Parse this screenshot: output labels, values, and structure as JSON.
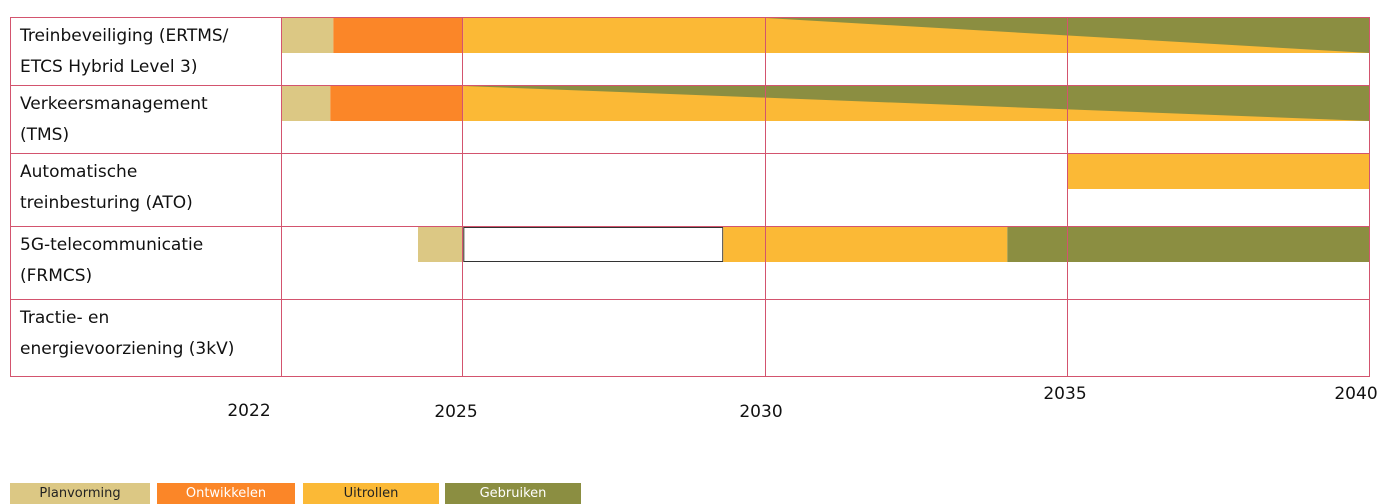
{
  "chart_data": {
    "type": "gantt",
    "x_range": [
      2022,
      2040
    ],
    "x_ticks": [
      "2022",
      "2025",
      "2030",
      "2035",
      "2040"
    ],
    "rows": [
      {
        "label": "Treinbeveiliging (ERTMS/\nETCS Hybrid Level 3)"
      },
      {
        "label": "Verkeersmanagement\n(TMS)"
      },
      {
        "label": "Automatische\ntreinbesturing (ATO)"
      },
      {
        "label": "5G-telecommunicatie\n(FRMCS)"
      },
      {
        "label": "Tractie- en\nenergievoorziening (3kV)"
      }
    ],
    "bars": [
      {
        "row": 0,
        "phase": "Planvorming",
        "start": 2022.0,
        "end": 2022.85
      },
      {
        "row": 0,
        "phase": "Ontwikkelen",
        "start": 2022.85,
        "end": 2025.0
      },
      {
        "row": 0,
        "phase": "Uitrollen",
        "start": 2025.0,
        "end": 2040.0
      },
      {
        "row": 1,
        "phase": "Planvorming",
        "start": 2022.0,
        "end": 2022.8
      },
      {
        "row": 1,
        "phase": "Ontwikkelen",
        "start": 2022.8,
        "end": 2025.0
      },
      {
        "row": 1,
        "phase": "Uitrollen",
        "start": 2025.0,
        "end": 2040.0
      },
      {
        "row": 2,
        "phase": "Uitrollen",
        "start": 2035.0,
        "end": 2040.0
      },
      {
        "row": 3,
        "phase": "Planvorming",
        "start": 2024.25,
        "end": 2025.0
      },
      {
        "row": 3,
        "phase": "none",
        "start": 2025.0,
        "end": 2029.3
      },
      {
        "row": 3,
        "phase": "Uitrollen",
        "start": 2029.3,
        "end": 2034.0
      },
      {
        "row": 3,
        "phase": "Gebruiken",
        "start": 2034.0,
        "end": 2040.0
      }
    ],
    "transitions": [
      {
        "row": 0,
        "from": "Uitrollen",
        "to": "Gebruiken",
        "start": 2030.0,
        "end_top": 2036.0,
        "end_bottom": 2040.0
      },
      {
        "row": 1,
        "from": "Uitrollen",
        "to": "Gebruiken",
        "start": 2025.0,
        "end_top": 2040.0,
        "end_bottom": 2040.0
      }
    ],
    "legend": [
      {
        "label": "Planvorming",
        "color": "#dcc884",
        "text_color": "#222222"
      },
      {
        "label": "Ontwikkelen",
        "color": "#fb8628",
        "text_color": "#ffffff"
      },
      {
        "label": "Uitrollen",
        "color": "#fbb936",
        "text_color": "#222222"
      },
      {
        "label": "Gebruiken",
        "color": "#8b8e41",
        "text_color": "#ffffff"
      }
    ],
    "grid_color": "#d3546e"
  }
}
